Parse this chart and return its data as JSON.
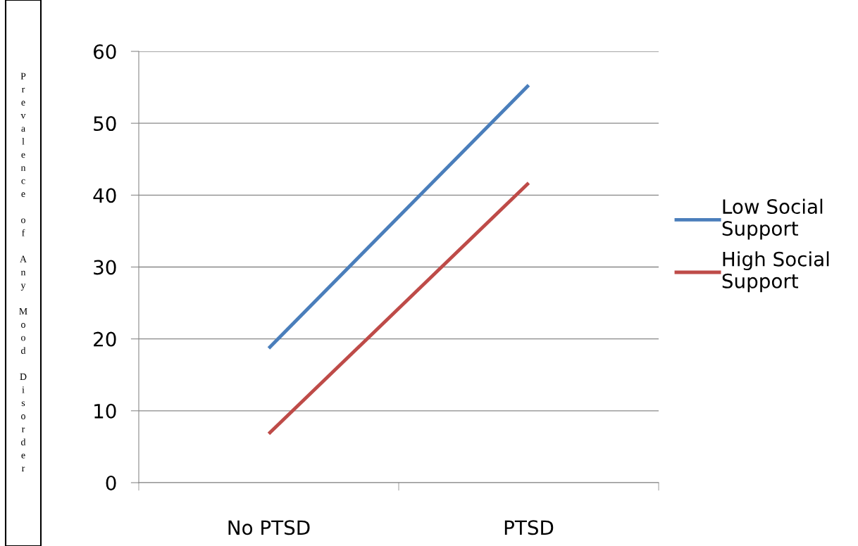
{
  "chart_data": {
    "type": "line",
    "ylabel": "Prevalence of Any Mood Disorder",
    "categories": [
      "No PTSD",
      "PTSD"
    ],
    "series": [
      {
        "name": "Low Social Support",
        "color": "#4a7ebb",
        "values": [
          18.7,
          55.3
        ]
      },
      {
        "name": "High Social Support",
        "color": "#be4b48",
        "values": [
          6.8,
          41.7
        ]
      }
    ],
    "ylim": [
      0,
      60
    ],
    "yticks": [
      0,
      10,
      20,
      30,
      40,
      50,
      60
    ],
    "grid": "y",
    "legend": "right",
    "marker": "none",
    "line_style": "solid"
  }
}
